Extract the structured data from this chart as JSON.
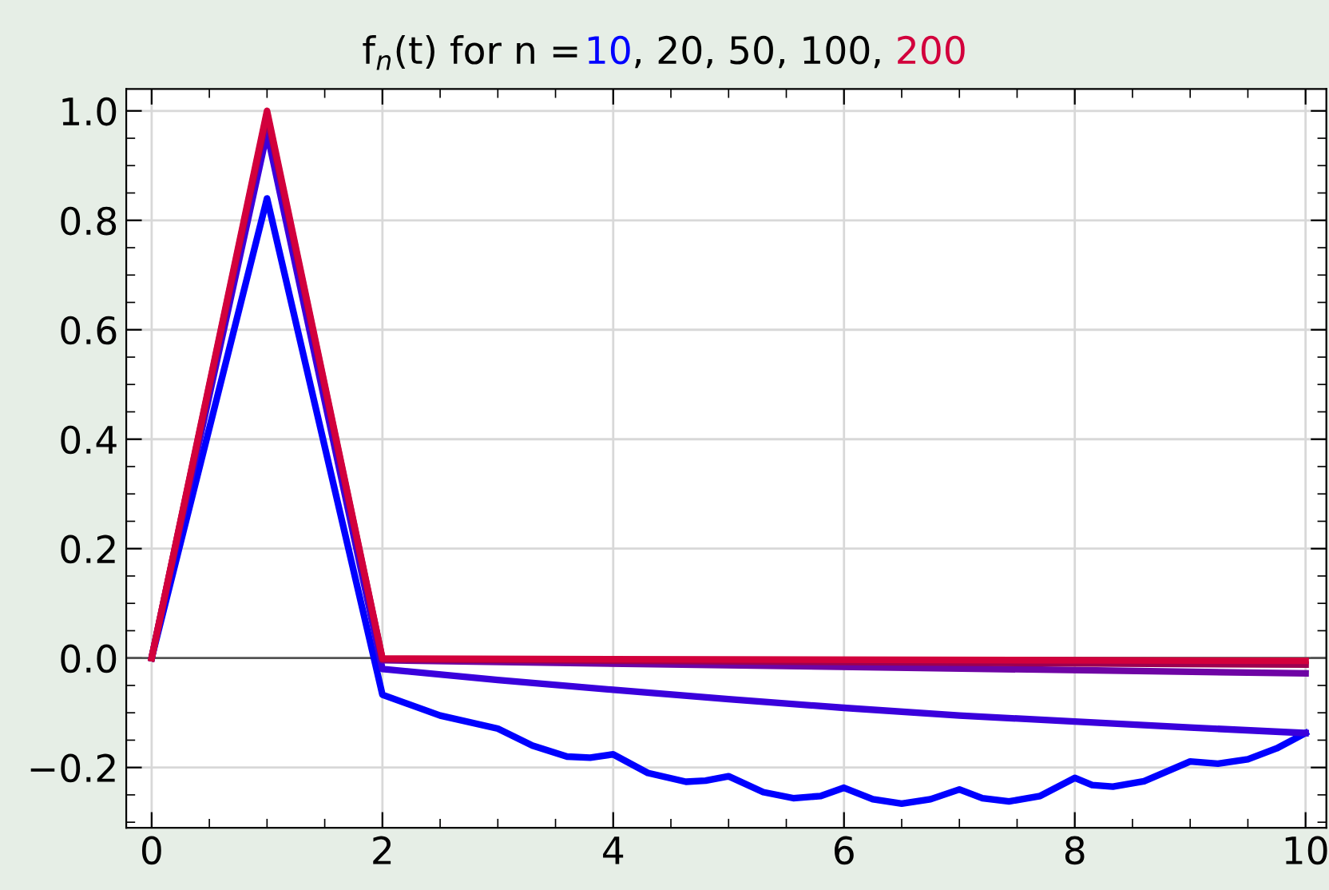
{
  "chart_data": {
    "type": "line",
    "title": "f$_{n}$(t) for n = 10, 20, 50, 100, 200",
    "series": [
      {
        "color": "#0000ff",
        "x": [
          0,
          1,
          2,
          2.5,
          3,
          3.3,
          3.6,
          3.8,
          4,
          4.3,
          4.63,
          4.8,
          5,
          5.3,
          5.56,
          5.8,
          6,
          6.25,
          6.5,
          6.75,
          7,
          7.2,
          7.43,
          7.7,
          8,
          8.15,
          8.33,
          8.6,
          9,
          9.24,
          9.5,
          9.75,
          10
        ],
        "values": [
          0,
          0.84,
          -0.067,
          -0.105,
          -0.129,
          -0.16,
          -0.18,
          -0.182,
          -0.176,
          -0.21,
          -0.226,
          -0.224,
          -0.216,
          -0.245,
          -0.256,
          -0.252,
          -0.237,
          -0.258,
          -0.266,
          -0.258,
          -0.24,
          -0.256,
          -0.262,
          -0.252,
          -0.219,
          -0.232,
          -0.235,
          -0.225,
          -0.189,
          -0.193,
          -0.185,
          -0.165,
          -0.137
        ]
      },
      {
        "color": "#3a00dc",
        "x": [
          0,
          1,
          2,
          3,
          4,
          5,
          6,
          7,
          8,
          9,
          10
        ],
        "values": [
          0,
          0.96,
          -0.02,
          -0.04,
          -0.058,
          -0.075,
          -0.091,
          -0.105,
          -0.116,
          -0.127,
          -0.137
        ]
      },
      {
        "color": "#6e04a4",
        "x": [
          0,
          1,
          2,
          10
        ],
        "values": [
          0,
          0.99,
          -0.004,
          -0.028
        ]
      },
      {
        "color": "#9c0050",
        "x": [
          0,
          1,
          2,
          10
        ],
        "values": [
          0,
          0.995,
          -0.002,
          -0.012
        ]
      },
      {
        "color": "#d2003c",
        "x": [
          0,
          1,
          2,
          10
        ],
        "values": [
          0,
          1.0,
          -0.001,
          -0.005
        ]
      }
    ],
    "xlim": [
      -0.22,
      10.18
    ],
    "ylim": [
      -0.31,
      1.04
    ],
    "xticks": [
      0,
      2,
      4,
      6,
      8,
      10
    ],
    "yticks": [
      {
        "value": -0.2,
        "label": "−0.2"
      },
      {
        "value": 0,
        "label": "0.0"
      },
      {
        "value": 0.2,
        "label": "0.2"
      },
      {
        "value": 0.4,
        "label": "0.4"
      },
      {
        "value": 0.6,
        "label": "0.6"
      },
      {
        "value": 0.8,
        "label": "0.8"
      },
      {
        "value": 1.0,
        "label": "1.0"
      }
    ],
    "ref_lines": [
      {
        "axis": "y",
        "value": 0,
        "color": "#555555"
      }
    ],
    "grid": true,
    "marker": "none",
    "line_style": "solid"
  }
}
